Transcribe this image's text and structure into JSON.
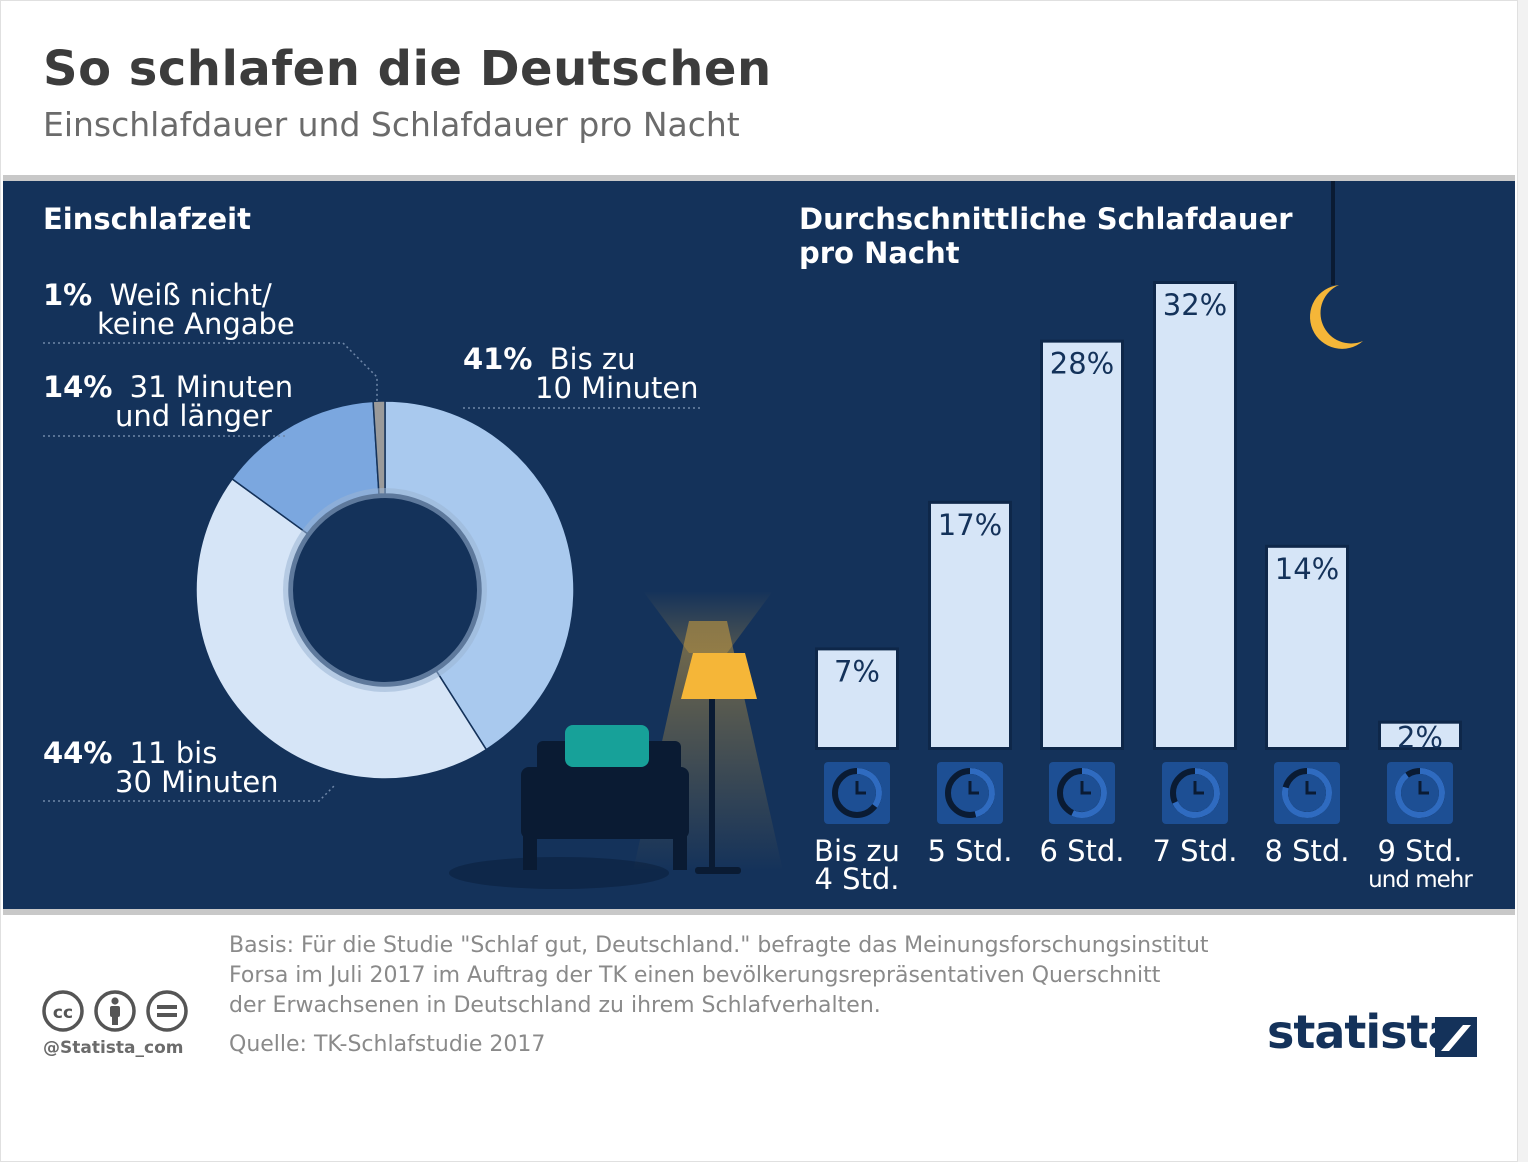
{
  "header": {
    "title": "So schlafen die Deutschen",
    "subtitle": "Einschlafdauer und Schlafdauer pro Nacht"
  },
  "colors": {
    "panel_bg": "#14325a",
    "donut_41": "#a9c9ee",
    "donut_44": "#d6e5f7",
    "donut_14": "#7ba7df",
    "donut_1": "#9a9a9a",
    "bar_fill": "#d6e5f7",
    "lamp": "#f5b638",
    "brand": "#14325a"
  },
  "chart_data": [
    {
      "type": "pie",
      "title": "Einschlafzeit",
      "slices": [
        {
          "pct_label": "41%",
          "label_line1": "Bis zu",
          "label_line2": "10 Minuten",
          "value": 41,
          "color": "#a9c9ee"
        },
        {
          "pct_label": "44%",
          "label_line1": "11 bis",
          "label_line2": "30 Minuten",
          "value": 44,
          "color": "#d6e5f7"
        },
        {
          "pct_label": "14%",
          "label_line1": "31 Minuten",
          "label_line2": "und länger",
          "value": 14,
          "color": "#7ba7df"
        },
        {
          "pct_label": "1%",
          "label_line1": "Weiß nicht/",
          "label_line2": "keine Angabe",
          "value": 1,
          "color": "#9a9a9a"
        }
      ]
    },
    {
      "type": "bar",
      "title_line1": "Durchschnittliche Schlafdauer",
      "title_line2": "pro Nacht",
      "categories": [
        {
          "line1": "Bis zu",
          "line2": "4 Std."
        },
        {
          "line1": "5 Std.",
          "line2": ""
        },
        {
          "line1": "6 Std.",
          "line2": ""
        },
        {
          "line1": "7 Std.",
          "line2": ""
        },
        {
          "line1": "8 Std.",
          "line2": ""
        },
        {
          "line1": "9 Std.",
          "line2": "und mehr"
        }
      ],
      "values": [
        7,
        17,
        28,
        32,
        14,
        2
      ],
      "value_labels": [
        "7%",
        "17%",
        "28%",
        "32%",
        "14%",
        "2%"
      ],
      "ylim": [
        0,
        32
      ]
    }
  ],
  "footer": {
    "basis_line1": "Basis: Für die Studie \"Schlaf gut, Deutschland.\" befragte das Meinungsforschungsinstitut",
    "basis_line2": "Forsa im Juli 2017 im Auftrag der TK einen bevölkerungsrepräsentativen Querschnitt",
    "basis_line3": "der Erwachsenen in Deutschland zu ihrem Schlafverhalten.",
    "source": "Quelle: TK-Schlafstudie 2017",
    "handle": "@Statista_com",
    "brand": "statista"
  }
}
